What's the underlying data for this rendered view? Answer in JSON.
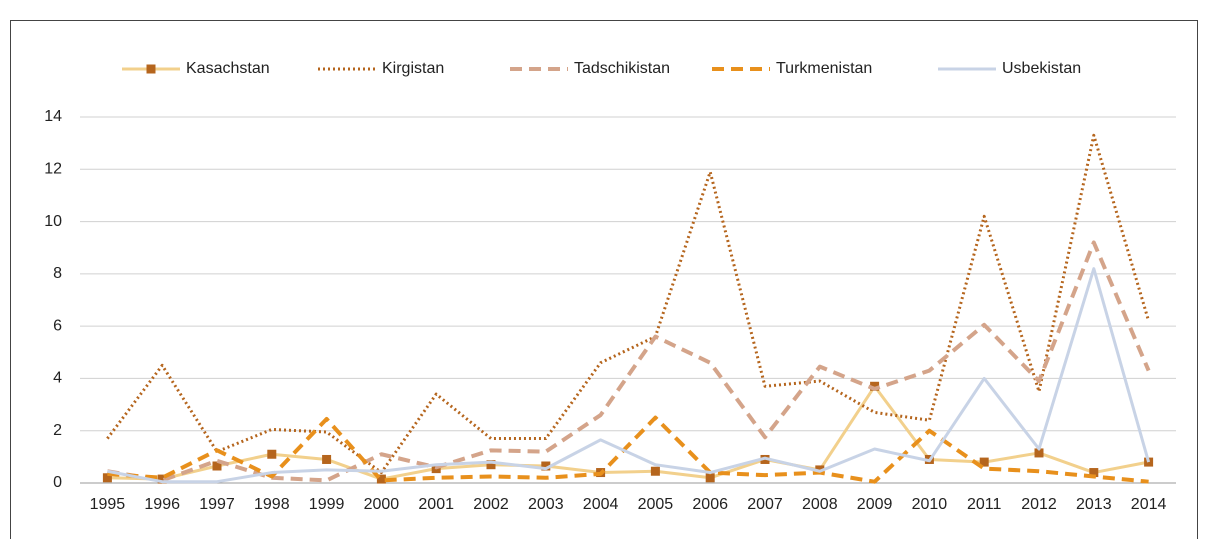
{
  "chart_data": {
    "type": "line",
    "categories": [
      "1995",
      "1996",
      "1997",
      "1998",
      "1999",
      "2000",
      "2001",
      "2002",
      "2003",
      "2004",
      "2005",
      "2006",
      "2007",
      "2008",
      "2009",
      "2010",
      "2011",
      "2012",
      "2013",
      "2014"
    ],
    "series": [
      {
        "name": "Kasachstan",
        "color": "#f2d08c",
        "marker_color": "#b5651d",
        "dash": "solid",
        "marker": "square",
        "values": [
          0.2,
          0.15,
          0.65,
          1.1,
          0.9,
          0.15,
          0.55,
          0.7,
          0.65,
          0.4,
          0.45,
          0.2,
          0.9,
          0.5,
          3.7,
          0.9,
          0.8,
          1.15,
          0.4,
          0.8
        ]
      },
      {
        "name": "Kirgistan",
        "color": "#b5651d",
        "dash": "dotted",
        "values": [
          1.7,
          4.5,
          1.2,
          2.05,
          1.95,
          0.4,
          3.4,
          1.7,
          1.7,
          4.6,
          5.6,
          11.9,
          3.7,
          3.9,
          2.7,
          2.4,
          10.2,
          3.5,
          13.3,
          6.2
        ]
      },
      {
        "name": "Tadschikistan",
        "color": "#d4a48a",
        "dash": "dashed",
        "values": [
          0.45,
          0.1,
          0.85,
          0.2,
          0.1,
          1.1,
          0.6,
          1.25,
          1.2,
          2.6,
          5.6,
          4.6,
          1.75,
          4.45,
          3.6,
          4.3,
          6.05,
          3.9,
          9.2,
          4.3
        ]
      },
      {
        "name": "Turkmenistan",
        "color": "#e8901c",
        "dash": "dashed",
        "values": [
          0.35,
          0.2,
          1.25,
          0.25,
          2.45,
          0.1,
          0.2,
          0.25,
          0.2,
          0.35,
          2.5,
          0.4,
          0.3,
          0.4,
          0.05,
          2.0,
          0.55,
          0.45,
          0.25,
          0.05
        ]
      },
      {
        "name": "Usbekistan",
        "color": "#c8d3e6",
        "dash": "solid",
        "values": [
          0.45,
          0.05,
          0.05,
          0.4,
          0.5,
          0.45,
          0.7,
          0.8,
          0.55,
          1.65,
          0.7,
          0.4,
          0.95,
          0.45,
          1.3,
          0.85,
          4.0,
          1.3,
          8.2,
          0.8
        ]
      }
    ],
    "ylim": [
      0,
      14
    ],
    "yticks": [
      0,
      2,
      4,
      6,
      8,
      10,
      12,
      14
    ],
    "grid": true,
    "legend": "top"
  }
}
